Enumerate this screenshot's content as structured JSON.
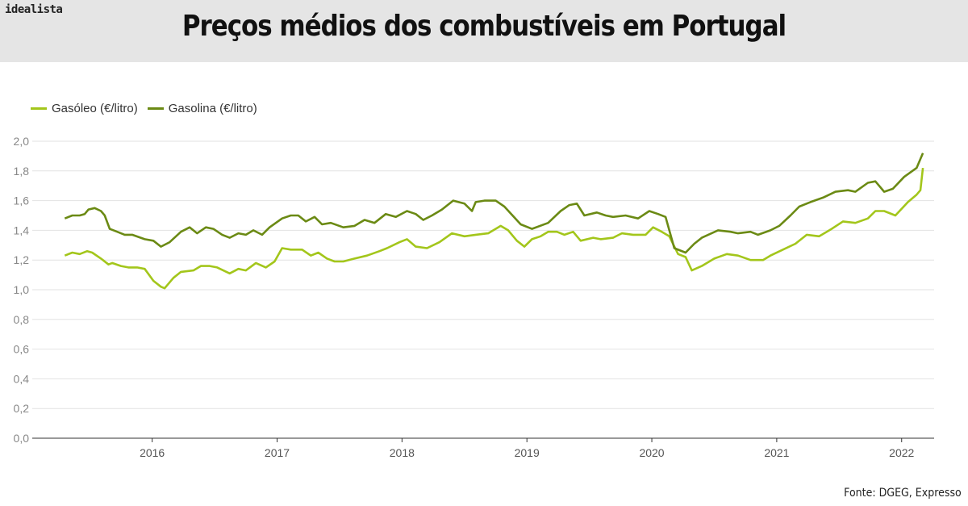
{
  "header": {
    "logo": "idealista",
    "title": "Preços médios dos combustíveis em Portugal"
  },
  "source": "Fonte: DGEG, Expresso",
  "chart_data": {
    "type": "line",
    "title": "Preços médios dos combustíveis em Portugal",
    "xlabel": "",
    "ylabel": "",
    "xlim": [
      2015.04,
      2022.26
    ],
    "ylim": [
      0,
      2.0
    ],
    "x_ticks": [
      2016,
      2017,
      2018,
      2019,
      2020,
      2021,
      2022
    ],
    "x_tick_labels": [
      "2016",
      "2017",
      "2018",
      "2019",
      "2020",
      "2021",
      "2022"
    ],
    "y_ticks": [
      0,
      0.2,
      0.4,
      0.6,
      0.8,
      1.0,
      1.2,
      1.4,
      1.6,
      1.8,
      2.0
    ],
    "y_tick_labels": [
      "0,0",
      "0,2",
      "0,4",
      "0,6",
      "0,8",
      "1,0",
      "1,2",
      "1,4",
      "1,6",
      "1,8",
      "2,0"
    ],
    "grid": true,
    "legend": "top-left",
    "series": [
      {
        "name": "Gasóleo (€/litro)",
        "color": "#a3c61b",
        "x": [
          2015.3,
          2015.36,
          2015.42,
          2015.48,
          2015.52,
          2015.59,
          2015.65,
          2015.68,
          2015.75,
          2015.81,
          2015.88,
          2015.94,
          2016.01,
          2016.07,
          2016.1,
          2016.17,
          2016.23,
          2016.33,
          2016.39,
          2016.46,
          2016.52,
          2016.62,
          2016.69,
          2016.75,
          2016.83,
          2016.91,
          2016.98,
          2017.04,
          2017.11,
          2017.2,
          2017.27,
          2017.33,
          2017.4,
          2017.46,
          2017.53,
          2017.62,
          2017.72,
          2017.82,
          2017.88,
          2017.98,
          2018.04,
          2018.11,
          2018.2,
          2018.3,
          2018.4,
          2018.5,
          2018.59,
          2018.69,
          2018.79,
          2018.85,
          2018.92,
          2018.98,
          2019.04,
          2019.11,
          2019.17,
          2019.24,
          2019.3,
          2019.37,
          2019.43,
          2019.53,
          2019.59,
          2019.69,
          2019.76,
          2019.85,
          2019.95,
          2020.01,
          2020.08,
          2020.14,
          2020.21,
          2020.27,
          2020.32,
          2020.4,
          2020.5,
          2020.6,
          2020.69,
          2020.79,
          2020.89,
          2020.95,
          2021.05,
          2021.15,
          2021.24,
          2021.34,
          2021.44,
          2021.53,
          2021.63,
          2021.73,
          2021.79,
          2021.86,
          2021.95,
          2022.05,
          2022.12,
          2022.15,
          2022.17
        ],
        "values": [
          1.23,
          1.25,
          1.24,
          1.26,
          1.25,
          1.21,
          1.17,
          1.18,
          1.16,
          1.15,
          1.15,
          1.14,
          1.06,
          1.02,
          1.01,
          1.08,
          1.12,
          1.13,
          1.16,
          1.16,
          1.15,
          1.11,
          1.14,
          1.13,
          1.18,
          1.15,
          1.19,
          1.28,
          1.27,
          1.27,
          1.23,
          1.25,
          1.21,
          1.19,
          1.19,
          1.21,
          1.23,
          1.26,
          1.28,
          1.32,
          1.34,
          1.29,
          1.28,
          1.32,
          1.38,
          1.36,
          1.37,
          1.38,
          1.43,
          1.4,
          1.33,
          1.29,
          1.34,
          1.36,
          1.39,
          1.39,
          1.37,
          1.39,
          1.33,
          1.35,
          1.34,
          1.35,
          1.38,
          1.37,
          1.37,
          1.42,
          1.39,
          1.36,
          1.24,
          1.22,
          1.13,
          1.16,
          1.21,
          1.24,
          1.23,
          1.2,
          1.2,
          1.23,
          1.27,
          1.31,
          1.37,
          1.36,
          1.41,
          1.46,
          1.45,
          1.48,
          1.53,
          1.53,
          1.5,
          1.59,
          1.64,
          1.67,
          1.82
        ]
      },
      {
        "name": "Gasolina (€/litro)",
        "color": "#6b8a14",
        "x": [
          2015.3,
          2015.36,
          2015.42,
          2015.46,
          2015.49,
          2015.54,
          2015.59,
          2015.62,
          2015.66,
          2015.72,
          2015.78,
          2015.84,
          2015.94,
          2016.01,
          2016.07,
          2016.14,
          2016.23,
          2016.3,
          2016.36,
          2016.43,
          2016.49,
          2016.56,
          2016.62,
          2016.69,
          2016.75,
          2016.81,
          2016.88,
          2016.94,
          2017.04,
          2017.11,
          2017.17,
          2017.23,
          2017.3,
          2017.36,
          2017.43,
          2017.53,
          2017.62,
          2017.7,
          2017.78,
          2017.87,
          2017.95,
          2018.04,
          2018.11,
          2018.17,
          2018.24,
          2018.32,
          2018.41,
          2018.5,
          2018.56,
          2018.59,
          2018.66,
          2018.75,
          2018.82,
          2018.95,
          2019.04,
          2019.17,
          2019.27,
          2019.34,
          2019.4,
          2019.46,
          2019.56,
          2019.63,
          2019.69,
          2019.79,
          2019.89,
          2019.98,
          2020.05,
          2020.11,
          2020.18,
          2020.27,
          2020.34,
          2020.4,
          2020.53,
          2020.63,
          2020.69,
          2020.79,
          2020.85,
          2020.95,
          2021.02,
          2021.11,
          2021.18,
          2021.27,
          2021.37,
          2021.47,
          2021.57,
          2021.63,
          2021.73,
          2021.79,
          2021.86,
          2021.93,
          2022.02,
          2022.12,
          2022.17
        ],
        "values": [
          1.48,
          1.5,
          1.5,
          1.51,
          1.54,
          1.55,
          1.53,
          1.5,
          1.41,
          1.39,
          1.37,
          1.37,
          1.34,
          1.33,
          1.29,
          1.32,
          1.39,
          1.42,
          1.38,
          1.42,
          1.41,
          1.37,
          1.35,
          1.38,
          1.37,
          1.4,
          1.37,
          1.42,
          1.48,
          1.5,
          1.5,
          1.46,
          1.49,
          1.44,
          1.45,
          1.42,
          1.43,
          1.47,
          1.45,
          1.51,
          1.49,
          1.53,
          1.51,
          1.47,
          1.5,
          1.54,
          1.6,
          1.58,
          1.53,
          1.59,
          1.6,
          1.6,
          1.56,
          1.44,
          1.41,
          1.45,
          1.53,
          1.57,
          1.58,
          1.5,
          1.52,
          1.5,
          1.49,
          1.5,
          1.48,
          1.53,
          1.51,
          1.49,
          1.28,
          1.25,
          1.31,
          1.35,
          1.4,
          1.39,
          1.38,
          1.39,
          1.37,
          1.4,
          1.43,
          1.5,
          1.56,
          1.59,
          1.62,
          1.66,
          1.67,
          1.66,
          1.72,
          1.73,
          1.66,
          1.68,
          1.76,
          1.82,
          1.92
        ]
      }
    ]
  }
}
